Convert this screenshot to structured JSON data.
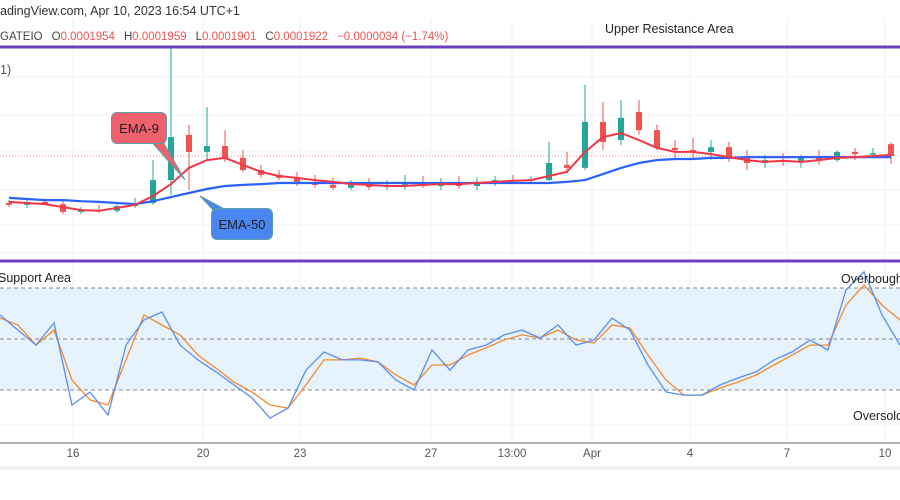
{
  "header": {
    "attribution": "adingView.com, Apr 10, 2023 16:54 UTC+1",
    "symbol": "GATEIO",
    "open_label": "O",
    "open": "0.0001954",
    "high_label": "H",
    "high": "0.0001959",
    "low_label": "L",
    "low": "0.0001901",
    "close_label": "C",
    "close": "0.0001922",
    "change": "−0.0000034 (−1.74%)",
    "indicator_fragment": "1)"
  },
  "annotations": {
    "upper_resistance": "Upper Resistance Area",
    "support": "Support Area",
    "overbought": "Overbought",
    "oversold": "Oversold",
    "ema9_callout": "EMA-9",
    "ema50_callout": "EMA-50"
  },
  "colors": {
    "up": "#26a69a",
    "down": "#ef5350",
    "ema9": "#f23645",
    "ema50": "#2962ff",
    "rsi": "#5b8def",
    "rsi_ma": "#f5892a",
    "zone_line": "#6a3fbf",
    "rsi_band": "#e6f2fc",
    "ema9_callout": "#f0616e",
    "ema50_callout": "#4a86f0"
  },
  "chart_data": [
    {
      "type": "candlestick",
      "title": "",
      "x_tick_labels": [
        "16",
        "20",
        "23",
        "27",
        "13:00",
        "Apr",
        "4",
        "7",
        "10"
      ],
      "last_price": 0.0001922,
      "candles_ohlc": [
        [
          0.0001795,
          0.0001803,
          0.0001784,
          0.000179
        ],
        [
          0.000179,
          0.0001809,
          0.0001782,
          0.0001798
        ],
        [
          0.0001798,
          0.0001806,
          0.000179,
          0.0001792
        ],
        [
          0.0001792,
          0.00018,
          0.0001765,
          0.0001771
        ],
        [
          0.0001771,
          0.0001784,
          0.0001765,
          0.0001776
        ],
        [
          0.0001776,
          0.000179,
          0.0001768,
          0.0001774
        ],
        [
          0.0001774,
          0.0001792,
          0.0001768,
          0.0001787
        ],
        [
          0.0001787,
          0.0001809,
          0.0001782,
          0.0001795
        ],
        [
          0.0001795,
          0.0001911,
          0.000179,
          0.0001857
        ],
        [
          0.0001857,
          0.0002216,
          0.0001817,
          0.0001973
        ],
        [
          0.0001979,
          0.0002006,
          0.000183,
          0.0001933
        ],
        [
          0.0001933,
          0.0002054,
          0.0001911,
          0.0001949
        ],
        [
          0.0001949,
          0.0001992,
          0.0001906,
          0.0001917
        ],
        [
          0.0001917,
          0.0001938,
          0.0001879,
          0.0001884
        ],
        [
          0.0001884,
          0.0001898,
          0.0001863,
          0.0001871
        ],
        [
          0.0001871,
          0.0001884,
          0.0001857,
          0.0001863
        ],
        [
          0.0001863,
          0.0001879,
          0.0001841,
          0.0001852
        ],
        [
          0.0001852,
          0.0001871,
          0.0001836,
          0.0001844
        ],
        [
          0.0001844,
          0.0001863,
          0.000183,
          0.0001836
        ],
        [
          0.0001836,
          0.0001857,
          0.000183,
          0.0001846
        ],
        [
          0.0001846,
          0.0001863,
          0.000183,
          0.0001838
        ],
        [
          0.0001838,
          0.0001857,
          0.000183,
          0.0001844
        ],
        [
          0.0001844,
          0.0001871,
          0.000183,
          0.0001849
        ],
        [
          0.0001849,
          0.0001868,
          0.0001836,
          0.0001841
        ],
        [
          0.0001841,
          0.0001863,
          0.000183,
          0.0001846
        ],
        [
          0.0001846,
          0.0001868,
          0.0001833,
          0.0001841
        ],
        [
          0.0001841,
          0.0001865,
          0.000183,
          0.0001852
        ],
        [
          0.0001852,
          0.0001868,
          0.0001841,
          0.0001857
        ],
        [
          0.0001857,
          0.0001871,
          0.0001846,
          0.0001855
        ],
        [
          0.0001855,
          0.0001868,
          0.0001846,
          0.000186
        ],
        [
          0.0001857,
          0.000196,
          0.0001855,
          0.0001903
        ],
        [
          0.0001898,
          0.0001933,
          0.0001879,
          0.000189
        ],
        [
          0.000189,
          0.0002114,
          0.0001884,
          0.0002014
        ],
        [
          0.0002014,
          0.0002068,
          0.0001938,
          0.000196
        ],
        [
          0.0001965,
          0.0002073,
          0.0001952,
          0.0002025
        ],
        [
          0.0002041,
          0.0002073,
          0.0001979,
          0.0001992
        ],
        [
          0.0001992,
          0.0002006,
          0.0001938,
          0.0001944
        ],
        [
          0.0001944,
          0.0001965,
          0.0001911,
          0.0001938
        ],
        [
          0.0001938,
          0.0001971,
          0.0001917,
          0.0001933
        ],
        [
          0.0001933,
          0.0001965,
          0.0001911,
          0.0001946
        ],
        [
          0.0001946,
          0.000196,
          0.0001906,
          0.0001917
        ],
        [
          0.0001917,
          0.0001938,
          0.0001884,
          0.0001903
        ],
        [
          0.0001903,
          0.0001925,
          0.000189,
          0.0001911
        ],
        [
          0.0001911,
          0.000193,
          0.0001895,
          0.0001906
        ],
        [
          0.0001906,
          0.0001925,
          0.000189,
          0.0001917
        ],
        [
          0.0001917,
          0.0001938,
          0.0001898,
          0.0001911
        ],
        [
          0.0001911,
          0.0001938,
          0.0001906,
          0.0001933
        ],
        [
          0.0001933,
          0.0001944,
          0.0001911,
          0.0001927
        ],
        [
          0.0001927,
          0.0001944,
          0.0001917,
          0.000193
        ],
        [
          0.0001954,
          0.0001959,
          0.0001901,
          0.0001922
        ]
      ],
      "ema9": [
        0.0001798,
        0.0001795,
        0.0001792,
        0.0001784,
        0.0001776,
        0.0001774,
        0.0001782,
        0.000179,
        0.0001814,
        0.0001846,
        0.000189,
        0.0001911,
        0.0001917,
        0.0001898,
        0.0001879,
        0.0001868,
        0.0001863,
        0.0001857,
        0.0001852,
        0.0001846,
        0.0001844,
        0.0001841,
        0.0001841,
        0.0001844,
        0.0001846,
        0.0001846,
        0.0001849,
        0.0001852,
        0.0001855,
        0.0001857,
        0.0001868,
        0.0001879,
        0.0001933,
        0.0001973,
        0.0001984,
        0.0001965,
        0.0001944,
        0.0001933,
        0.0001933,
        0.0001927,
        0.0001919,
        0.0001911,
        0.0001906,
        0.0001909,
        0.0001906,
        0.0001911,
        0.0001917,
        0.0001919,
        0.0001922,
        0.0001925
      ],
      "ema50": [
        0.0001809,
        0.0001806,
        0.0001803,
        0.0001803,
        0.00018,
        0.0001798,
        0.0001795,
        0.0001792,
        0.00018,
        0.0001811,
        0.0001822,
        0.0001833,
        0.0001841,
        0.0001844,
        0.0001846,
        0.0001849,
        0.0001849,
        0.0001849,
        0.0001849,
        0.0001849,
        0.0001849,
        0.0001849,
        0.0001849,
        0.0001849,
        0.0001849,
        0.0001849,
        0.0001849,
        0.0001849,
        0.0001849,
        0.0001849,
        0.0001849,
        0.0001852,
        0.0001857,
        0.0001873,
        0.000189,
        0.0001903,
        0.0001911,
        0.0001914,
        0.0001914,
        0.0001917,
        0.0001917,
        0.0001919,
        0.0001919,
        0.0001919,
        0.0001919,
        0.0001919,
        0.0001919,
        0.0001919,
        0.0001919,
        0.0001919
      ]
    },
    {
      "type": "line",
      "title": "",
      "ylim": [
        0,
        100
      ],
      "levels": [
        70,
        50,
        30
      ],
      "series": [
        {
          "values": [
            59.4,
            53.5,
            47.6,
            56.3,
            24.1,
            29.2,
            20.2,
            47.6,
            57.5,
            60.6,
            47.6,
            41.8,
            37.1,
            32,
            26.9,
            19,
            22.9,
            37.8,
            44.9,
            41.8,
            41.8,
            41,
            33.9,
            30,
            45.7,
            37.8,
            45.7,
            47.6,
            51.6,
            53.5,
            50.4,
            55.5,
            47.6,
            49.6,
            58.2,
            53.5,
            39.8,
            29.2,
            28,
            28,
            32,
            34.7,
            37.1,
            41.8,
            44.9,
            49.6,
            45.7,
            69.2,
            76.3,
            59.4,
            47.6
          ]
        },
        {
          "values": [
            58.2,
            55.5,
            47.6,
            53.5,
            33.9,
            26.1,
            24.1,
            41.8,
            59.4,
            55.5,
            51.6,
            43.7,
            38.6,
            33.1,
            29.2,
            24.1,
            22.9,
            32,
            41.8,
            41.8,
            42.5,
            41,
            35.9,
            32,
            39.8,
            39.8,
            43.7,
            46.5,
            49.6,
            51.6,
            50.4,
            53.5,
            49.6,
            48.4,
            55.5,
            54.3,
            43.7,
            33.9,
            28,
            28,
            30.8,
            33.1,
            35.9,
            39.8,
            43.7,
            47.6,
            47.6,
            63.3,
            71.2,
            63.3,
            57.5
          ]
        }
      ]
    }
  ]
}
